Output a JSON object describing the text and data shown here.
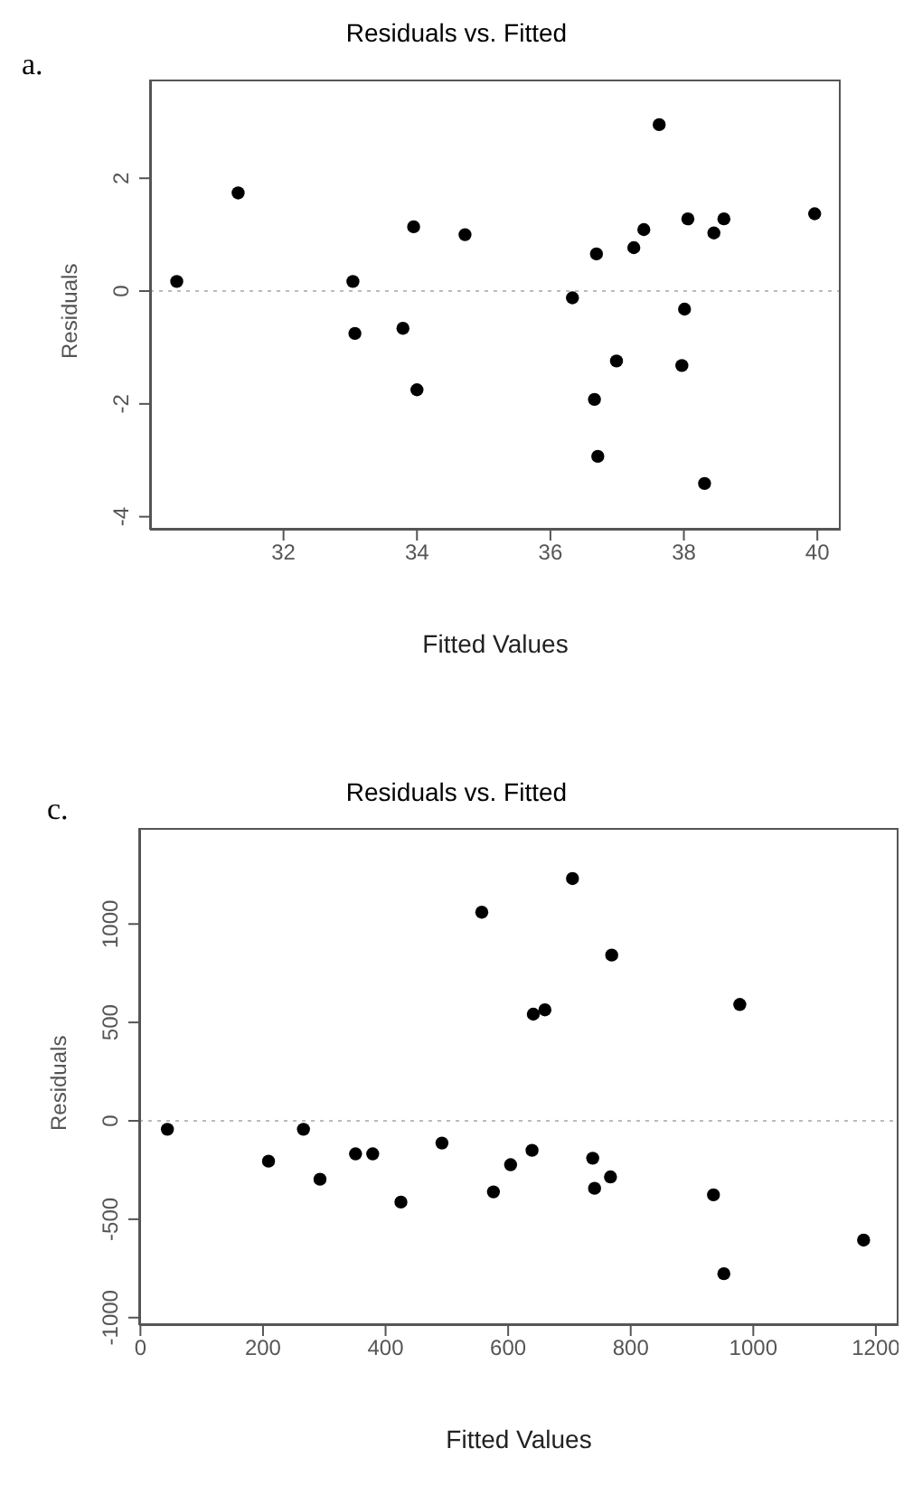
{
  "chart_data": [
    {
      "type": "scatter",
      "title": "Residuals vs. Fitted",
      "xlabel": "Fitted Values",
      "ylabel": "Residuals",
      "annotations": [
        "a."
      ],
      "marker": "circle",
      "grid": false,
      "xlim": [
        30.0,
        40.35
      ],
      "xticks": [
        32,
        34,
        36,
        38,
        40
      ],
      "ylim": [
        -4.23,
        3.75
      ],
      "yticks": [
        -4,
        -2,
        0,
        2
      ],
      "ref_lines": [
        {
          "axis": "y",
          "value": 0,
          "color": "#bbbbbb",
          "line_style": "dotted"
        }
      ],
      "series": [
        {
          "color": "#000000",
          "x": [
            30.4,
            31.32,
            33.04,
            33.07,
            33.95,
            33.79,
            34.0,
            34.72,
            36.33,
            36.69,
            36.66,
            36.71,
            36.99,
            37.25,
            37.4,
            37.63,
            38.06,
            38.01,
            37.97,
            38.45,
            38.6,
            38.31,
            39.96
          ],
          "values": [
            0.17,
            1.74,
            0.17,
            -0.75,
            1.14,
            -0.66,
            -1.75,
            1.0,
            -0.12,
            0.66,
            -1.92,
            -2.93,
            -1.24,
            0.77,
            1.09,
            2.95,
            1.28,
            -0.32,
            -1.32,
            1.03,
            1.28,
            -3.41,
            1.37
          ]
        }
      ]
    },
    {
      "type": "scatter",
      "title": "Residuals vs. Fitted",
      "xlabel": "Fitted Values",
      "ylabel": "Residuals",
      "annotations": [
        "c."
      ],
      "marker": "circle",
      "grid": false,
      "xlim": [
        -2,
        1237
      ],
      "xticks": [
        0,
        200,
        400,
        600,
        800,
        1000,
        1200
      ],
      "ylim": [
        -1038,
        1488
      ],
      "yticks": [
        -1000,
        -500,
        0,
        500,
        1000
      ],
      "ref_lines": [
        {
          "axis": "y",
          "value": 0,
          "color": "#bbbbbb",
          "line_style": "dotted"
        }
      ],
      "series": [
        {
          "color": "#000000",
          "x": [
            44,
            209,
            266,
            293,
            351,
            379,
            425,
            492,
            557,
            576,
            604,
            639,
            641,
            660,
            705,
            738,
            741,
            767,
            769,
            935,
            952,
            978,
            1180
          ],
          "values": [
            -43,
            -205,
            -43,
            -297,
            -168,
            -168,
            -413,
            -113,
            1060,
            -361,
            -223,
            -150,
            542,
            564,
            1231,
            -190,
            -343,
            -285,
            842,
            -376,
            -777,
            591,
            -606
          ]
        }
      ]
    }
  ]
}
